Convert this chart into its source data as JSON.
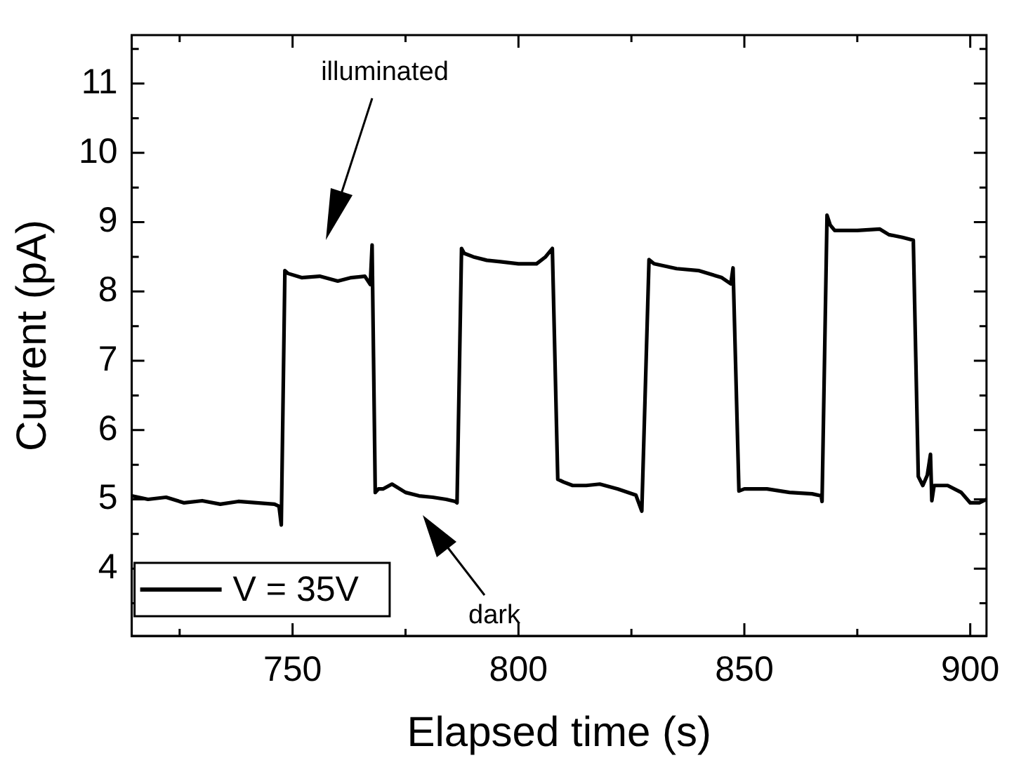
{
  "chart_data": {
    "type": "line",
    "xlabel": "Elapsed time (s)",
    "ylabel": "Current (pA)",
    "xlim": [
      714.4,
      903.6
    ],
    "ylim": [
      3.03,
      11.7
    ],
    "xticks": [
      {
        "value": 725,
        "label": null
      },
      750,
      {
        "value": 775,
        "label": null
      },
      800,
      {
        "value": 825,
        "label": null
      },
      850,
      {
        "value": 875,
        "label": null
      },
      900
    ],
    "yticks": [
      {
        "value": 3.5,
        "label": null
      },
      4,
      {
        "value": 4.5,
        "label": null
      },
      5,
      {
        "value": 5.5,
        "label": null
      },
      6,
      {
        "value": 6.5,
        "label": null
      },
      7,
      {
        "value": 7.5,
        "label": null
      },
      8,
      {
        "value": 8.5,
        "label": null
      },
      9,
      {
        "value": 9.5,
        "label": null
      },
      10,
      {
        "value": 10.5,
        "label": null
      },
      11,
      {
        "value": 11.5,
        "label": null
      }
    ],
    "grid": false,
    "legend": "bottom left",
    "marker": "none",
    "line_style": "solid",
    "series": [
      {
        "name": "V = 35V",
        "color": "#000000",
        "x": [
          714.4,
          718,
          722,
          726,
          730,
          734,
          738,
          742,
          746,
          747,
          747.5,
          747.8,
          748.3,
          749,
          752,
          756,
          760,
          763,
          766,
          767.2,
          767.6,
          767.9,
          768.3,
          769,
          770,
          772,
          775,
          778,
          781,
          784,
          786,
          786.4,
          786.6,
          787.4,
          788,
          790,
          793,
          796,
          800,
          804,
          806,
          807.5,
          807.9,
          808.7,
          810,
          812,
          815,
          818,
          822,
          826,
          827.3,
          827.6,
          828.1,
          828.9,
          830,
          835,
          840,
          845,
          847,
          847.5,
          847.8,
          848.8,
          850,
          855,
          860,
          865,
          867,
          867.2,
          867.4,
          868.3,
          869,
          870,
          875,
          880,
          882,
          885,
          887.4,
          887.7,
          888.5,
          889.5,
          890.5,
          891.2,
          891.5,
          892,
          895,
          898,
          900,
          902,
          903.6
        ],
        "values": [
          5.05,
          5.0,
          5.03,
          4.95,
          4.98,
          4.93,
          4.97,
          4.95,
          4.93,
          4.9,
          4.63,
          null,
          8.3,
          8.26,
          8.2,
          8.22,
          8.15,
          8.2,
          8.22,
          8.1,
          8.67,
          null,
          5.1,
          5.15,
          5.15,
          5.22,
          5.1,
          5.05,
          5.03,
          5.0,
          4.97,
          4.95,
          null,
          8.62,
          8.55,
          8.5,
          8.45,
          8.43,
          8.4,
          8.4,
          8.5,
          8.62,
          null,
          5.29,
          5.25,
          5.2,
          5.2,
          5.22,
          5.15,
          5.06,
          4.83,
          null,
          null,
          8.46,
          8.4,
          8.33,
          8.3,
          8.2,
          8.11,
          8.34,
          null,
          5.12,
          5.15,
          5.15,
          5.1,
          5.08,
          5.05,
          4.97,
          null,
          9.1,
          8.96,
          8.88,
          8.88,
          8.9,
          8.82,
          8.78,
          8.74,
          null,
          5.33,
          5.2,
          5.35,
          5.65,
          4.98,
          5.2,
          5.2,
          5.1,
          4.95,
          4.95,
          5.0
        ]
      }
    ],
    "annotations": [
      "illuminated",
      "dark"
    ]
  }
}
